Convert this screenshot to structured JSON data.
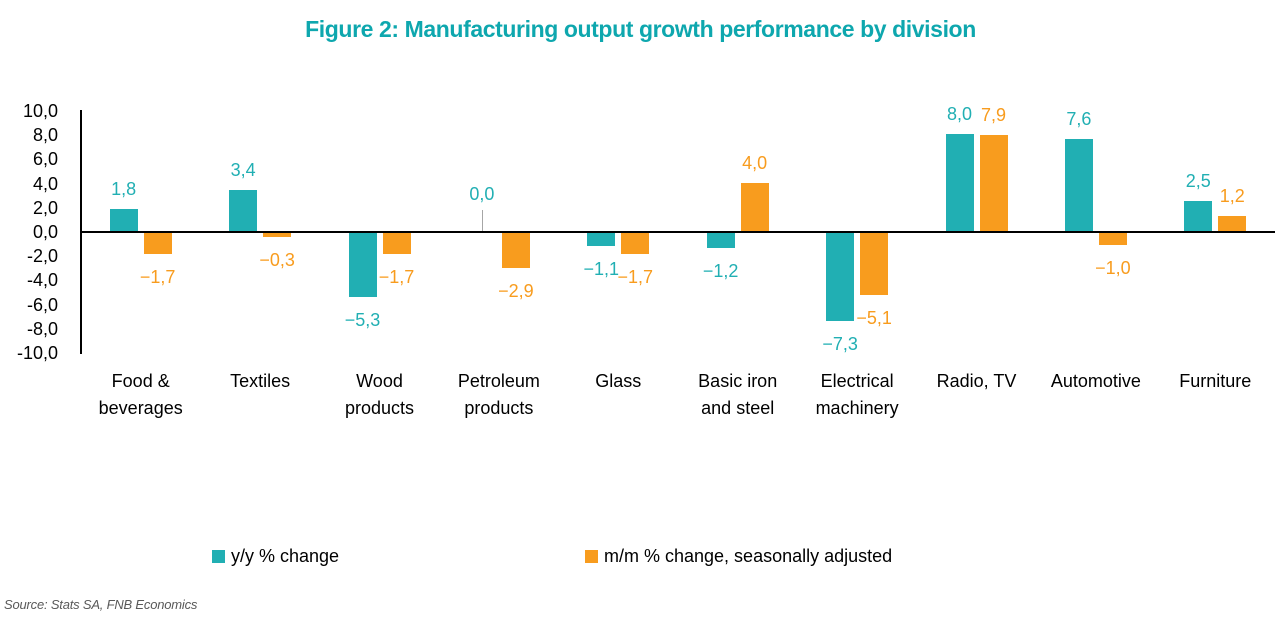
{
  "title": "Figure 2: Manufacturing output growth performance by division",
  "source_note": "Source: Stats SA, FNB Economics",
  "colors": {
    "title_teal": "#0ea7ae",
    "series_teal": "#21afb3",
    "series_orange": "#f89c1e",
    "axis_black": "#000000",
    "leader_gray": "#a6a6a6",
    "source_gray": "#595959"
  },
  "legend": {
    "items": [
      {
        "label": "y/y % change",
        "color_key": "series_teal"
      },
      {
        "label": "m/m % change, seasonally adjusted",
        "color_key": "series_orange"
      }
    ]
  },
  "chart_data": {
    "type": "bar",
    "title": "Figure 2: Manufacturing output growth performance by division",
    "categories": [
      "Food &\nbeverages",
      "Textiles",
      "Wood\nproducts",
      "Petroleum\nproducts",
      "Glass",
      "Basic iron\nand steel",
      "Electrical\nmachinery",
      "Radio, TV",
      "Automotive",
      "Furniture"
    ],
    "series": [
      {
        "name": "y/y % change",
        "color_key": "series_teal",
        "values": [
          1.8,
          3.4,
          -5.3,
          0.0,
          -1.1,
          -1.2,
          -7.3,
          8.0,
          7.6,
          2.5
        ],
        "labels": [
          "1,8",
          "3,4",
          "−5,3",
          "0,0",
          "−1,1",
          "−1,2",
          "−7,3",
          "8,0",
          "7,6",
          "2,5"
        ]
      },
      {
        "name": "m/m % change, seasonally adjusted",
        "color_key": "series_orange",
        "values": [
          -1.7,
          -0.3,
          -1.7,
          -2.9,
          -1.7,
          4.0,
          -5.1,
          7.9,
          -1.0,
          1.2
        ],
        "labels": [
          "−1,7",
          "−0,3",
          "−1,7",
          "−2,9",
          "−1,7",
          "4,0",
          "−5,1",
          "7,9",
          "−1,0",
          "1,2"
        ]
      }
    ],
    "ylim": [
      -10,
      10
    ],
    "ytick_values": [
      10,
      8,
      6,
      4,
      2,
      0,
      -2,
      -4,
      -6,
      -8,
      -10
    ],
    "yticks": [
      "10,0",
      "8,0",
      "6,0",
      "4,0",
      "2,0",
      "0,0",
      "-2,0",
      "-4,0",
      "-6,0",
      "-8,0",
      "-10,0"
    ],
    "grid": false,
    "legend_position": "bottom",
    "decimal_separator": ","
  }
}
